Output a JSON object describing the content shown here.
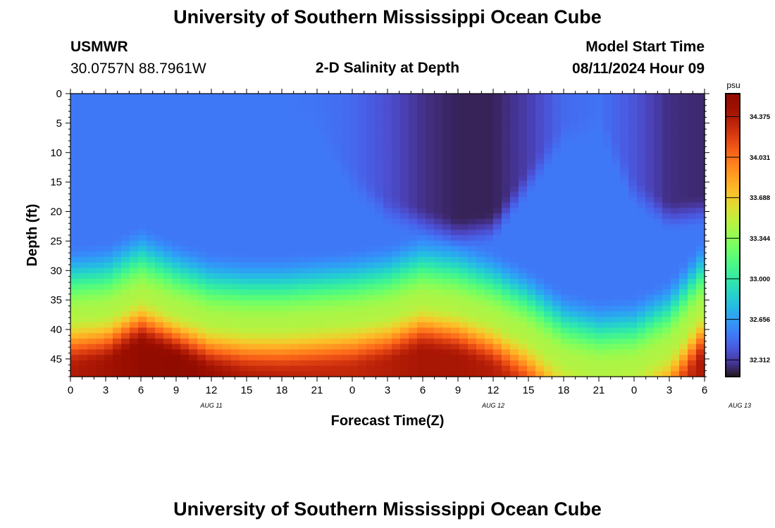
{
  "header": {
    "title": "University of Southern Mississippi Ocean Cube",
    "station": "USMWR",
    "coords": "30.0757N  88.7961W",
    "subtitle": "2-D Salinity at Depth",
    "model_start_label": "Model Start Time",
    "model_start_value": "08/11/2024 Hour 09"
  },
  "footer": {
    "title": "University of Southern Mississippi Ocean Cube"
  },
  "colors": {
    "background": "#ffffff",
    "axis": "#000000"
  },
  "chart_data": {
    "type": "heatmap",
    "title": "2-D Salinity at Depth",
    "xlabel": "Forecast Time(Z)",
    "ylabel": "Depth (ft)",
    "x_tick_labels": [
      "0",
      "3",
      "6",
      "9",
      "12",
      "15",
      "18",
      "21",
      "0",
      "3",
      "6",
      "9",
      "12",
      "15",
      "18",
      "21",
      "0",
      "3",
      "6"
    ],
    "x_day_labels": [
      {
        "label": "AUG 11",
        "hour": 12
      },
      {
        "label": "AUG 12",
        "hour": 36
      },
      {
        "label": "AUG 13",
        "hour": 57
      }
    ],
    "xlim_hours": [
      0,
      54
    ],
    "y_ticks": [
      0,
      5,
      10,
      15,
      20,
      25,
      30,
      35,
      40,
      45
    ],
    "ylim": [
      0,
      48
    ],
    "y_inverted": true,
    "colorbar": {
      "unit": "psu",
      "ticks": [
        "34.375",
        "34.031",
        "33.688",
        "33.344",
        "33.000",
        "32.656",
        "32.312"
      ],
      "tick_values": [
        34.375,
        34.031,
        33.688,
        33.344,
        33.0,
        32.656,
        32.312
      ],
      "range": [
        32.17,
        34.57
      ],
      "colormap": "turbo"
    },
    "halocline_depth_ft": {
      "hours": [
        0,
        3,
        6,
        9,
        12,
        15,
        18,
        21,
        24,
        27,
        30,
        33,
        36,
        39,
        42,
        45,
        48,
        51,
        54
      ],
      "values": [
        37.5,
        37,
        34,
        36.5,
        38.5,
        39,
        39,
        38.5,
        38,
        37,
        35,
        36,
        38,
        41,
        45,
        46.5,
        46,
        43,
        36
      ]
    },
    "surface_salinity_psu": {
      "hours": [
        0,
        3,
        6,
        9,
        12,
        15,
        18,
        21,
        24,
        27,
        30,
        33,
        36,
        39,
        42,
        45,
        48,
        51,
        54
      ],
      "values": [
        32.52,
        32.52,
        32.52,
        32.52,
        32.52,
        32.52,
        32.52,
        32.51,
        32.47,
        32.38,
        32.27,
        32.22,
        32.22,
        32.32,
        32.47,
        32.5,
        32.4,
        32.26,
        32.24
      ]
    },
    "fresh_layer_bottom_ft": {
      "hours": [
        0,
        3,
        6,
        9,
        12,
        15,
        18,
        21,
        24,
        27,
        30,
        33,
        36,
        39,
        42,
        45,
        48,
        51,
        54
      ],
      "values": [
        0,
        0,
        0,
        0,
        0,
        0,
        0,
        2,
        12,
        17,
        19,
        21,
        20,
        12,
        4,
        2,
        14,
        18,
        17
      ]
    },
    "deep_max_salinity_psu": {
      "hours": [
        0,
        3,
        6,
        9,
        12,
        15,
        18,
        21,
        24,
        27,
        30,
        33,
        36,
        39,
        42,
        45,
        48,
        51,
        54
      ],
      "values": [
        34.35,
        34.42,
        34.5,
        34.55,
        34.45,
        34.35,
        34.32,
        34.3,
        34.3,
        34.35,
        34.4,
        34.4,
        34.35,
        34.2,
        33.9,
        33.7,
        33.8,
        34.1,
        34.4
      ]
    }
  }
}
